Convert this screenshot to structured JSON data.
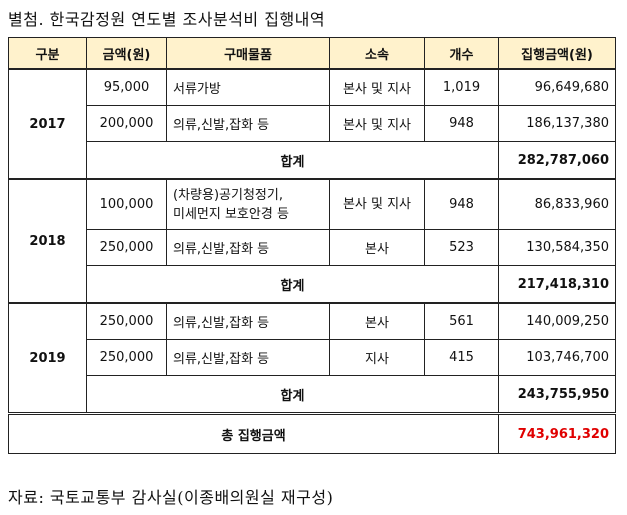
{
  "title": "별첨. 한국감정원 연도별 조사분석비 집행내역",
  "headers": [
    "구분",
    "금액(원)",
    "구매물품",
    "소속",
    "개수",
    "집행금액(원)"
  ],
  "rows": {
    "y2017": {
      "year": "2017",
      "items": [
        {
          "price": "95,000",
          "item": "서류가방",
          "dept": "본사 및 지사",
          "count": "1,019",
          "amount": "96,649,680"
        },
        {
          "price": "200,000",
          "item": "의류,신발,잡화 등",
          "dept": "본사 및 지사",
          "count": "948",
          "amount": "186,137,380"
        }
      ],
      "subtotal_label": "합계",
      "subtotal": "282,787,060"
    },
    "y2018": {
      "year": "2018",
      "items": [
        {
          "price": "100,000",
          "item_line1": "(차량용)공기청정기,",
          "item_line2": "미세먼지 보호안경 등",
          "dept": "본사 및 지사",
          "count": "948",
          "amount": "86,833,960"
        },
        {
          "price": "250,000",
          "item": "의류,신발,잡화 등",
          "dept": "본사",
          "count": "523",
          "amount": "130,584,350"
        }
      ],
      "subtotal_label": "합계",
      "subtotal": "217,418,310"
    },
    "y2019": {
      "year": "2019",
      "items": [
        {
          "price": "250,000",
          "item": "의류,신발,잡화 등",
          "dept": "본사",
          "count": "561",
          "amount": "140,009,250"
        },
        {
          "price": "250,000",
          "item": "의류,신발,잡화 등",
          "dept": "지사",
          "count": "415",
          "amount": "103,746,700"
        }
      ],
      "subtotal_label": "합계",
      "subtotal": "243,755,950"
    }
  },
  "grand_total_label": "총 집행금액",
  "grand_total": "743,961,320",
  "colors": {
    "header_bg": "#fff2cc",
    "grand_total_text": "#e00000"
  },
  "source": "자료: 국토교통부 감사실(이종배의원실 재구성)"
}
